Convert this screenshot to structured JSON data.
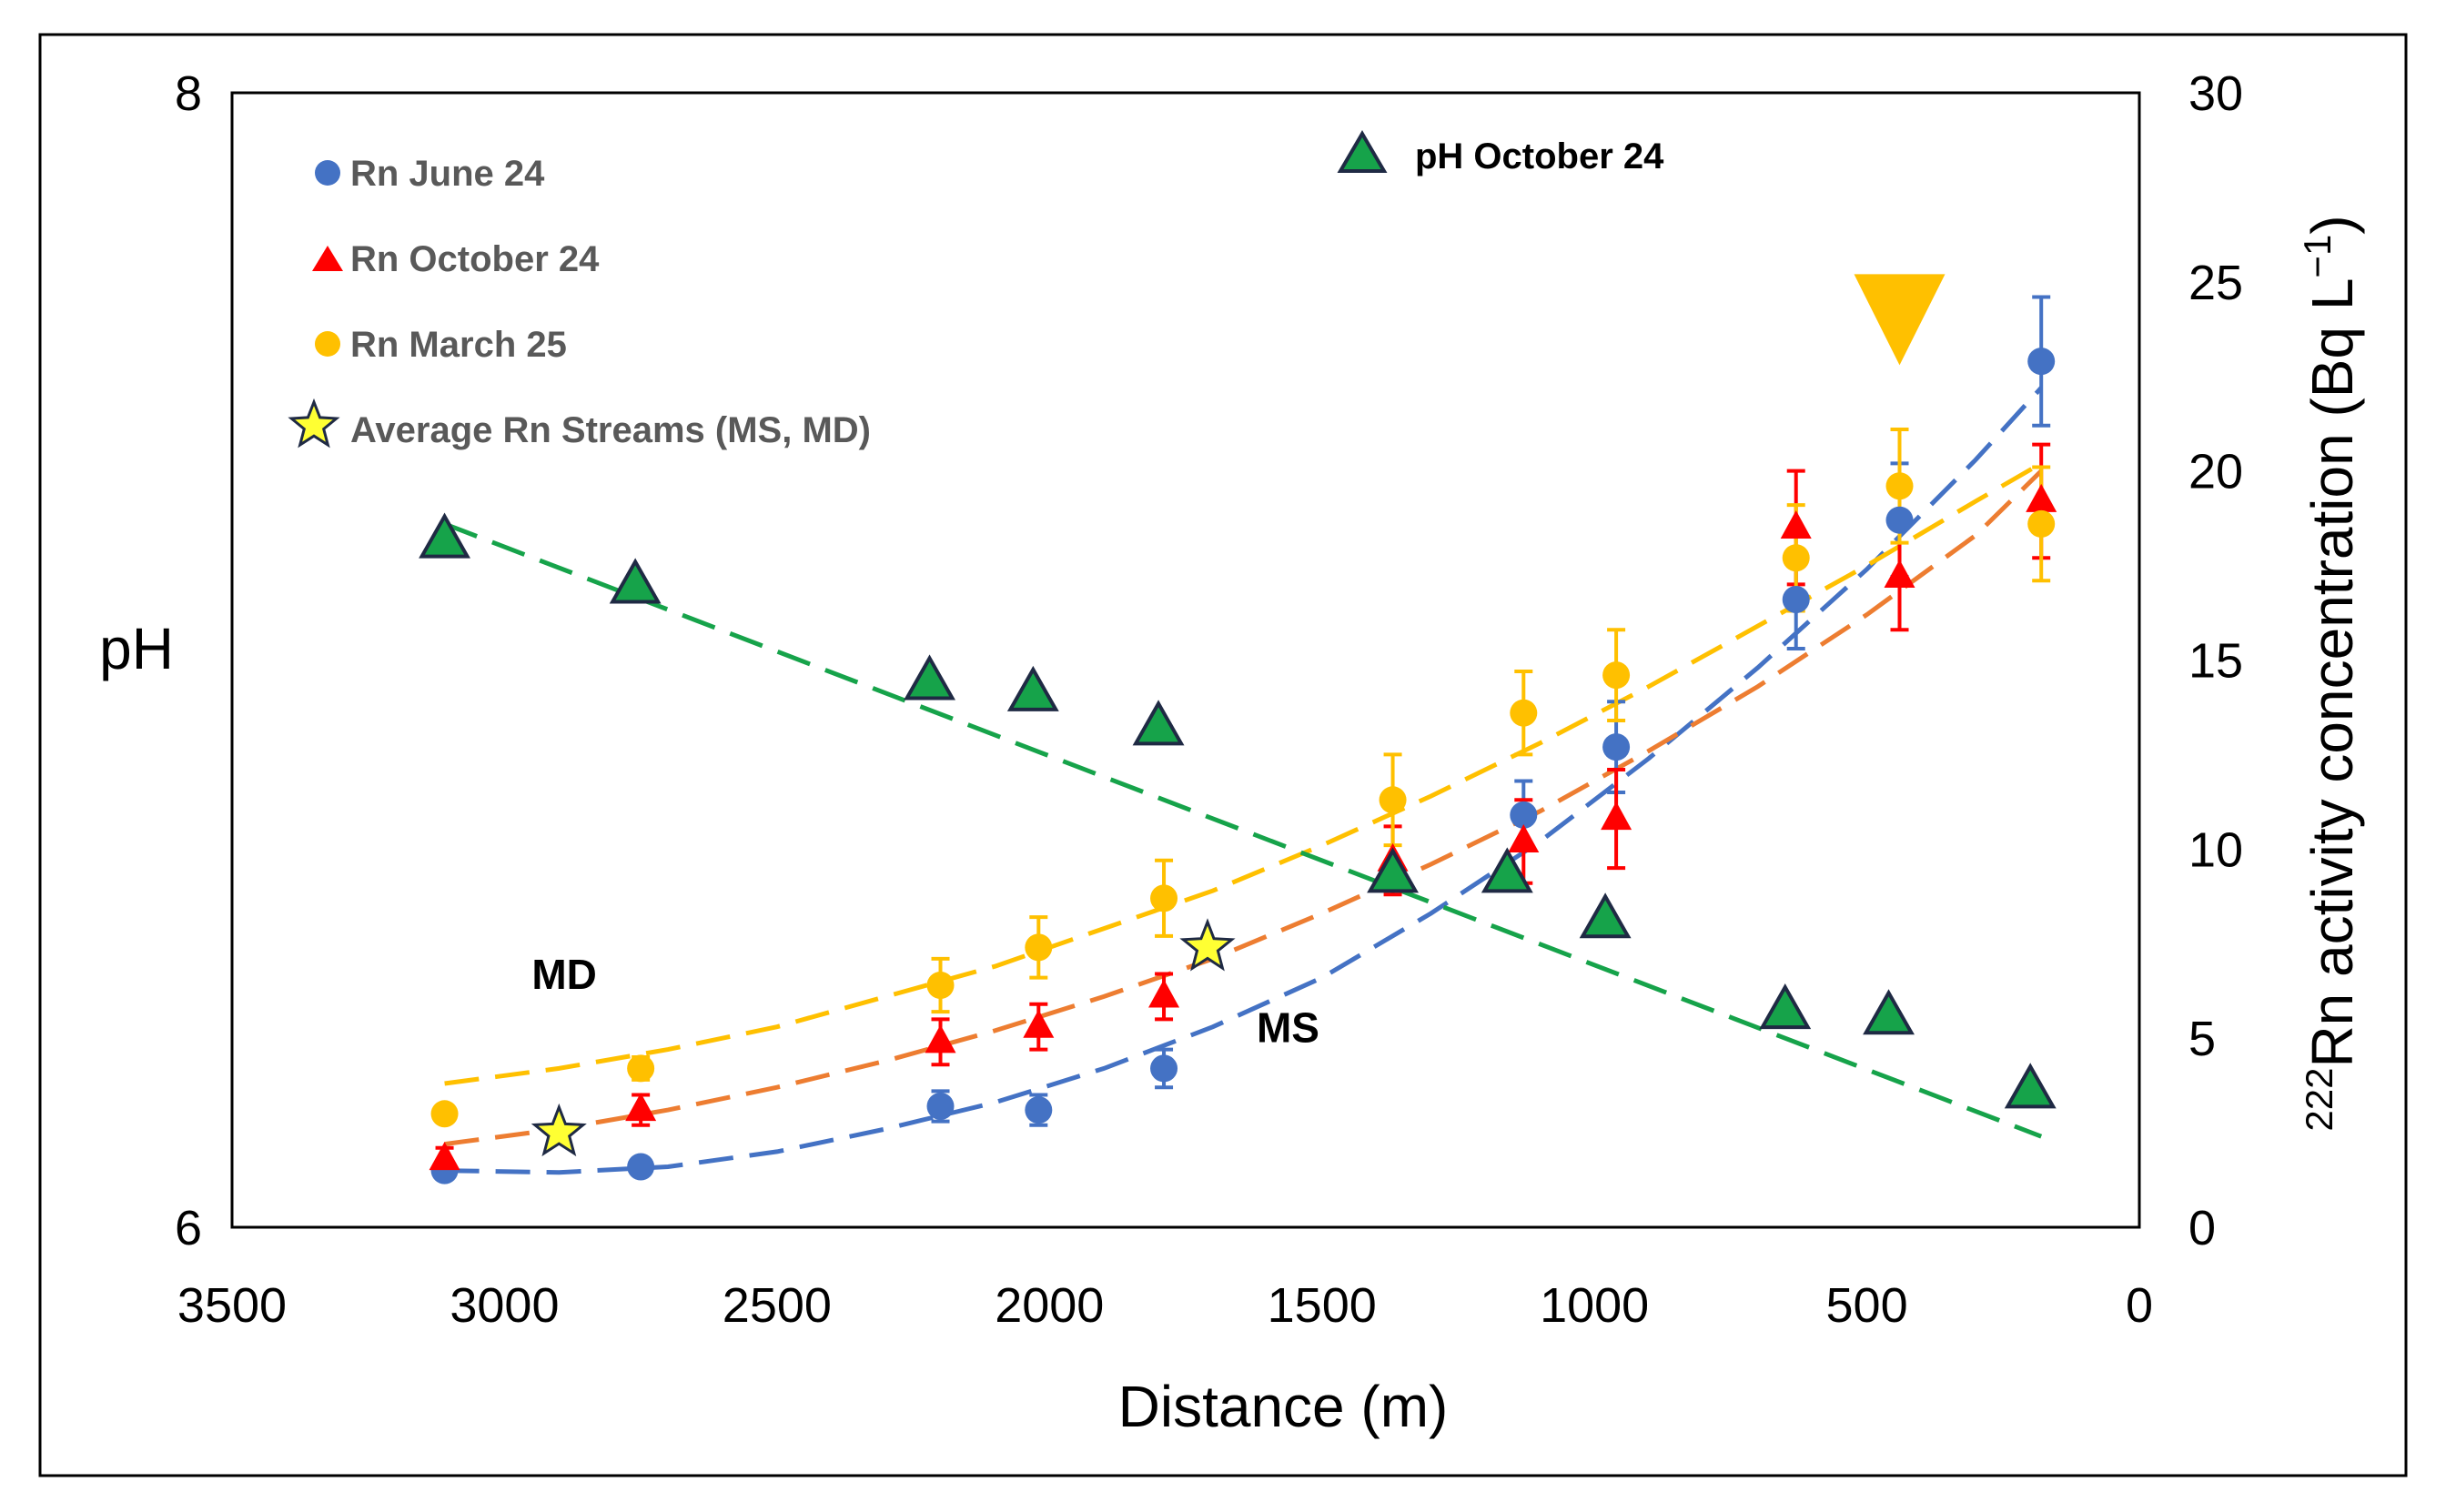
{
  "chart_data": {
    "type": "scatter",
    "xlabel": "Distance (m)",
    "ylabel_left": "pH",
    "ylabel_right_prefix": "222",
    "ylabel_right_main": "Rn activity concentration (Bq L",
    "ylabel_right_sup": "−1",
    "ylabel_right_suffix": ")",
    "x_axis": {
      "min": 0,
      "max": 3500,
      "reversed": true,
      "ticks": [
        "3500",
        "3000",
        "2500",
        "2000",
        "1500",
        "1000",
        "500",
        "0"
      ],
      "tick_values": [
        3500,
        3000,
        2500,
        2000,
        1500,
        1000,
        500,
        0
      ]
    },
    "y_left": {
      "min": 6,
      "max": 8,
      "ticks": [
        "8",
        "6"
      ],
      "tick_values": [
        8,
        6
      ]
    },
    "y_right": {
      "min": 0,
      "max": 30,
      "ticks": [
        "30",
        "25",
        "20",
        "15",
        "10",
        "5",
        "0"
      ],
      "tick_values": [
        30,
        25,
        20,
        15,
        10,
        5,
        0
      ]
    },
    "legend": [
      {
        "label": "Rn June 24",
        "color": "#4472C4",
        "marker": "circle"
      },
      {
        "label": "Rn October 24",
        "color": "#FF0000",
        "marker": "triangle"
      },
      {
        "label": "Rn March 25",
        "color": "#FFC000",
        "marker": "circle"
      },
      {
        "label": "Average Rn Streams (MS, MD)",
        "color": "#FFFF33",
        "marker": "star"
      }
    ],
    "legend_ph": {
      "label": "pH October 24",
      "color": "#16A34A",
      "marker": "triangle"
    },
    "series": [
      {
        "name": "Rn June 24",
        "axis": "right",
        "color": "#4472C4",
        "marker": "circle",
        "x": [
          3110,
          2750,
          2200,
          2020,
          1790,
          1130,
          960,
          630,
          440,
          180
        ],
        "y": [
          1.5,
          1.6,
          3.2,
          3.1,
          4.2,
          10.9,
          12.7,
          16.6,
          18.7,
          22.9
        ],
        "err": [
          0.2,
          0.2,
          0.4,
          0.4,
          0.5,
          0.9,
          1.2,
          1.3,
          1.5,
          1.7
        ]
      },
      {
        "name": "Rn October 24",
        "axis": "right",
        "color": "#FF0000",
        "marker": "triangle",
        "x": [
          3110,
          2750,
          2200,
          2020,
          1790,
          1370,
          1130,
          960,
          630,
          440,
          180
        ],
        "y": [
          1.8,
          3.1,
          4.9,
          5.3,
          6.1,
          9.7,
          10.2,
          10.8,
          18.5,
          17.2,
          19.2
        ],
        "err": [
          0.3,
          0.4,
          0.6,
          0.6,
          0.6,
          0.9,
          1.1,
          1.3,
          1.5,
          1.4,
          1.5
        ]
      },
      {
        "name": "Rn March 25",
        "axis": "right",
        "color": "#FFC000",
        "marker": "circle",
        "x": [
          3110,
          2750,
          2200,
          2020,
          1790,
          1370,
          1130,
          960,
          630,
          440,
          180
        ],
        "y": [
          3.0,
          4.2,
          6.4,
          7.4,
          8.7,
          11.3,
          13.6,
          14.6,
          17.7,
          19.6,
          18.6
        ],
        "err": [
          0.2,
          0.3,
          0.7,
          0.8,
          1.0,
          1.2,
          1.1,
          1.2,
          1.4,
          1.5,
          1.5
        ]
      },
      {
        "name": "Average Rn Streams (MS, MD)",
        "axis": "right",
        "color": "#FFFF33",
        "marker": "star",
        "x": [
          2900,
          1710
        ],
        "y": [
          2.5,
          7.4
        ]
      },
      {
        "name": "pH October 24",
        "axis": "left",
        "color": "#16A34A",
        "marker": "triangle",
        "x": [
          3110,
          2760,
          2220,
          2030,
          1800,
          1370,
          1160,
          980,
          650,
          460,
          200
        ],
        "y": [
          7.21,
          7.13,
          6.96,
          6.94,
          6.88,
          6.62,
          6.62,
          6.54,
          6.38,
          6.37,
          6.24
        ]
      }
    ],
    "trendlines": [
      {
        "name": "trend Rn June 24",
        "color": "#4472C4",
        "axis": "right",
        "x": [
          3110,
          2900,
          2700,
          2500,
          2300,
          2100,
          1900,
          1700,
          1500,
          1300,
          1100,
          900,
          700,
          500,
          300,
          180
        ],
        "y": [
          1.5,
          1.45,
          1.6,
          2.0,
          2.6,
          3.3,
          4.2,
          5.3,
          6.6,
          8.3,
          10.2,
          12.4,
          14.8,
          17.4,
          20.3,
          22.2
        ]
      },
      {
        "name": "trend Rn October 24",
        "color": "#ED7D31",
        "axis": "right",
        "x": [
          3110,
          2900,
          2700,
          2500,
          2300,
          2100,
          1900,
          1700,
          1500,
          1300,
          1100,
          900,
          700,
          500,
          300,
          180
        ],
        "y": [
          2.2,
          2.6,
          3.1,
          3.7,
          4.4,
          5.2,
          6.1,
          7.1,
          8.3,
          9.6,
          11.0,
          12.6,
          14.3,
          16.2,
          18.3,
          20.0
        ]
      },
      {
        "name": "trend Rn March 25",
        "color": "#FFC000",
        "axis": "right",
        "x": [
          3110,
          2900,
          2700,
          2500,
          2300,
          2100,
          1900,
          1700,
          1500,
          1300,
          1100,
          900,
          700,
          500,
          300,
          180
        ],
        "y": [
          3.8,
          4.2,
          4.7,
          5.3,
          6.1,
          6.9,
          7.9,
          8.9,
          10.1,
          11.4,
          12.8,
          14.3,
          15.9,
          17.5,
          19.2,
          20.2
        ]
      },
      {
        "name": "trend pH October 24",
        "color": "#16A34A",
        "axis": "left",
        "x": [
          3110,
          180
        ],
        "y": [
          7.24,
          6.16
        ]
      }
    ],
    "annotations": [
      {
        "text": "MD",
        "x": 2950,
        "y_right": 6.3
      },
      {
        "text": "MS",
        "x": 1720,
        "y_right": 4.9
      }
    ],
    "arrow_marker": {
      "color": "#FFC000",
      "x": 440,
      "y_right": 24.0,
      "shape": "down-triangle"
    }
  }
}
